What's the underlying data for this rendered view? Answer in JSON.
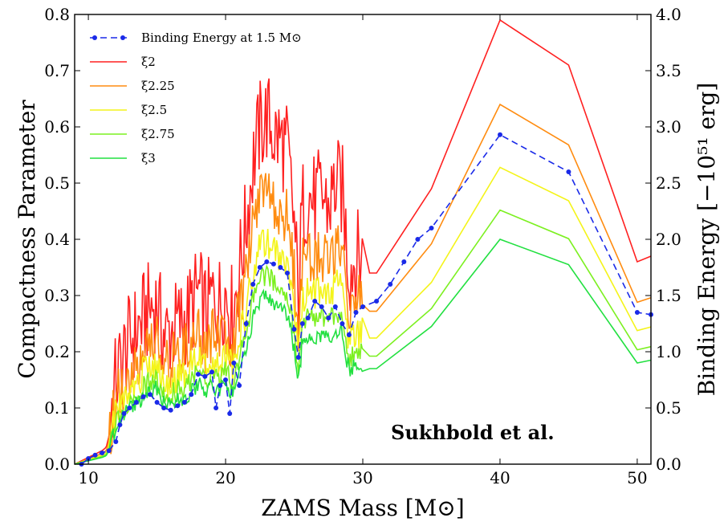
{
  "chart_data": {
    "type": "line",
    "xlabel": "ZAMS Mass [M⊙]",
    "ylabel": "Compactness Parameter",
    "y2label": "Binding Energy [−10⁵¹ erg]",
    "annotation": "Sukhbold et al.",
    "xlim": [
      9,
      51
    ],
    "ylim": [
      0,
      0.8
    ],
    "y2lim": [
      0,
      4.0
    ],
    "xticks": [
      "10",
      "20",
      "30",
      "40",
      "50"
    ],
    "yticks": [
      "0.0",
      "0.1",
      "0.2",
      "0.3",
      "0.4",
      "0.5",
      "0.6",
      "0.7",
      "0.8"
    ],
    "y2ticks": [
      "0.0",
      "0.5",
      "1.0",
      "1.5",
      "2.0",
      "2.5",
      "3.0",
      "3.5",
      "4.0"
    ],
    "legend_position": "upper-left",
    "grid": false,
    "base_series": {
      "x": [
        9.0,
        10.0,
        11.0,
        11.3,
        11.6,
        12.0,
        12.5,
        13.0,
        13.5,
        14.0,
        14.5,
        15.0,
        15.3,
        15.6,
        16.0,
        16.5,
        17.0,
        17.5,
        18.0,
        18.3,
        18.6,
        19.0,
        19.5,
        20.0,
        20.5,
        21.0,
        21.5,
        22.0,
        22.5,
        23.0,
        23.5,
        24.0,
        24.5,
        25.0,
        25.3,
        25.6,
        26.0,
        26.5,
        27.0,
        27.5,
        28.0,
        28.5,
        29.0,
        29.5,
        30.0,
        31.0,
        35.0,
        40.0,
        45.0,
        50.0,
        51.0
      ],
      "values": [
        0.0,
        0.006,
        0.012,
        0.015,
        0.03,
        0.06,
        0.08,
        0.095,
        0.105,
        0.115,
        0.125,
        0.13,
        0.11,
        0.1,
        0.105,
        0.11,
        0.115,
        0.125,
        0.14,
        0.13,
        0.12,
        0.135,
        0.13,
        0.14,
        0.12,
        0.16,
        0.2,
        0.255,
        0.285,
        0.295,
        0.28,
        0.275,
        0.265,
        0.2,
        0.135,
        0.215,
        0.225,
        0.22,
        0.225,
        0.215,
        0.235,
        0.23,
        0.16,
        0.17,
        0.17,
        0.17,
        0.245,
        0.4,
        0.355,
        0.18,
        0.185
      ]
    },
    "series": [
      {
        "name": "ξ2",
        "color": "#ff2020",
        "axis": "left",
        "factor": 2.0,
        "noise": 0.09
      },
      {
        "name": "ξ2.25",
        "color": "#ff8c10",
        "axis": "left",
        "factor": 1.6,
        "noise": 0.05
      },
      {
        "name": "ξ2.5",
        "color": "#f4f41a",
        "axis": "left",
        "factor": 1.32,
        "noise": 0.03
      },
      {
        "name": "ξ2.75",
        "color": "#7cf020",
        "axis": "left",
        "factor": 1.13,
        "noise": 0.02
      },
      {
        "name": "ξ3",
        "color": "#22e040",
        "axis": "left",
        "factor": 1.0,
        "noise": 0.015
      },
      {
        "name": "Binding Energy at 1.5 M⊙",
        "color": "#1a2ae8",
        "axis": "right",
        "x": [
          9.5,
          10.0,
          10.5,
          11.0,
          11.5,
          12.0,
          12.3,
          12.6,
          13.0,
          13.5,
          14.0,
          14.5,
          15.0,
          15.5,
          16.0,
          16.5,
          17.0,
          17.5,
          18.0,
          18.5,
          19.0,
          19.3,
          19.6,
          20.0,
          20.3,
          20.6,
          21.0,
          21.5,
          22.0,
          22.5,
          23.0,
          23.5,
          24.0,
          24.5,
          25.0,
          25.3,
          25.6,
          26.0,
          26.5,
          27.0,
          27.5,
          28.0,
          28.5,
          29.0,
          29.5,
          30.0,
          31.0,
          32.0,
          33.0,
          34.0,
          35.0,
          40.0,
          45.0,
          50.0,
          51.0
        ],
        "values": [
          0.0,
          0.05,
          0.08,
          0.1,
          0.12,
          0.2,
          0.35,
          0.45,
          0.5,
          0.55,
          0.6,
          0.62,
          0.55,
          0.5,
          0.48,
          0.52,
          0.55,
          0.62,
          0.8,
          0.78,
          0.82,
          0.5,
          0.7,
          0.75,
          0.45,
          0.9,
          0.7,
          1.25,
          1.6,
          1.75,
          1.8,
          1.78,
          1.75,
          1.7,
          1.2,
          0.95,
          1.25,
          1.3,
          1.45,
          1.4,
          1.3,
          1.4,
          1.25,
          1.15,
          1.35,
          1.4,
          1.45,
          1.6,
          1.8,
          2.0,
          2.1,
          2.93,
          2.6,
          1.35,
          1.33
        ]
      }
    ]
  }
}
